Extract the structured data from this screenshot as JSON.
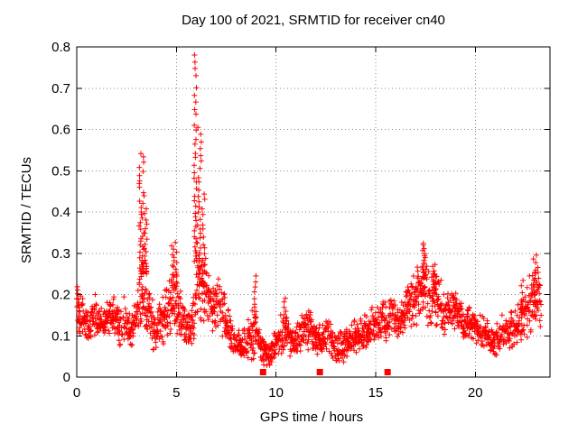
{
  "figure": {
    "background": "#ffffff"
  },
  "chart_data": {
    "type": "scatter",
    "title": "Day 100 of 2021, SRMTID for receiver cn40",
    "xlabel": "GPS time / hours",
    "ylabel": "SRMTID / TECUs",
    "xlim": [
      0,
      23.75
    ],
    "ylim": [
      0,
      0.8
    ],
    "xticks": [
      0,
      5,
      10,
      15,
      20
    ],
    "yticks": [
      0,
      0.1,
      0.2,
      0.3,
      0.4,
      0.5,
      0.6,
      0.7,
      0.8
    ],
    "grid": true,
    "legend": "none",
    "colors": {
      "marker": "#ff0000",
      "grid": "#888888",
      "axis": "#000000",
      "text": "#000000",
      "background": "#ffffff"
    },
    "marker": {
      "shape": "plus",
      "size": 7,
      "stroke_width": 1
    },
    "series": [
      {
        "name": "srmtid",
        "render": "band-scatter",
        "epoch_step": 0.035,
        "x_start": 0.02,
        "x_end": 23.3,
        "envelope": [
          [
            0.0,
            0.1,
            0.24
          ],
          [
            0.3,
            0.09,
            0.2
          ],
          [
            0.6,
            0.07,
            0.16
          ],
          [
            0.9,
            0.1,
            0.21
          ],
          [
            1.2,
            0.08,
            0.17
          ],
          [
            1.5,
            0.09,
            0.2
          ],
          [
            1.8,
            0.1,
            0.22
          ],
          [
            2.1,
            0.07,
            0.17
          ],
          [
            2.4,
            0.08,
            0.2
          ],
          [
            2.7,
            0.06,
            0.16
          ],
          [
            3.0,
            0.08,
            0.22
          ],
          [
            3.3,
            0.1,
            0.3
          ],
          [
            3.6,
            0.08,
            0.25
          ],
          [
            3.9,
            0.05,
            0.18
          ],
          [
            4.2,
            0.06,
            0.2
          ],
          [
            4.5,
            0.08,
            0.24
          ],
          [
            4.8,
            0.1,
            0.28
          ],
          [
            5.1,
            0.1,
            0.24
          ],
          [
            5.4,
            0.08,
            0.18
          ],
          [
            5.7,
            0.07,
            0.16
          ],
          [
            6.0,
            0.1,
            0.3
          ],
          [
            6.3,
            0.1,
            0.34
          ],
          [
            6.6,
            0.1,
            0.28
          ],
          [
            6.9,
            0.1,
            0.24
          ],
          [
            7.2,
            0.1,
            0.26
          ],
          [
            7.5,
            0.06,
            0.2
          ],
          [
            7.8,
            0.04,
            0.14
          ],
          [
            8.1,
            0.04,
            0.13
          ],
          [
            8.4,
            0.03,
            0.12
          ],
          [
            8.7,
            0.04,
            0.16
          ],
          [
            9.0,
            0.04,
            0.18
          ],
          [
            9.3,
            0.02,
            0.1
          ],
          [
            9.6,
            0.02,
            0.09
          ],
          [
            9.9,
            0.03,
            0.12
          ],
          [
            10.2,
            0.05,
            0.16
          ],
          [
            10.5,
            0.05,
            0.17
          ],
          [
            10.8,
            0.04,
            0.13
          ],
          [
            11.1,
            0.05,
            0.14
          ],
          [
            11.4,
            0.06,
            0.16
          ],
          [
            11.7,
            0.06,
            0.18
          ],
          [
            12.0,
            0.05,
            0.14
          ],
          [
            12.3,
            0.05,
            0.13
          ],
          [
            12.6,
            0.06,
            0.15
          ],
          [
            12.9,
            0.04,
            0.12
          ],
          [
            13.2,
            0.03,
            0.11
          ],
          [
            13.5,
            0.04,
            0.12
          ],
          [
            13.8,
            0.05,
            0.14
          ],
          [
            14.1,
            0.05,
            0.15
          ],
          [
            14.4,
            0.06,
            0.16
          ],
          [
            14.7,
            0.07,
            0.17
          ],
          [
            15.0,
            0.08,
            0.18
          ],
          [
            15.3,
            0.08,
            0.19
          ],
          [
            15.6,
            0.08,
            0.2
          ],
          [
            15.9,
            0.09,
            0.2
          ],
          [
            16.2,
            0.08,
            0.19
          ],
          [
            16.5,
            0.09,
            0.22
          ],
          [
            16.8,
            0.1,
            0.25
          ],
          [
            17.1,
            0.11,
            0.28
          ],
          [
            17.4,
            0.12,
            0.3
          ],
          [
            17.7,
            0.11,
            0.27
          ],
          [
            18.0,
            0.11,
            0.27
          ],
          [
            18.3,
            0.1,
            0.24
          ],
          [
            18.6,
            0.1,
            0.22
          ],
          [
            18.9,
            0.1,
            0.22
          ],
          [
            19.2,
            0.09,
            0.2
          ],
          [
            19.5,
            0.08,
            0.18
          ],
          [
            19.8,
            0.08,
            0.17
          ],
          [
            20.1,
            0.07,
            0.16
          ],
          [
            20.4,
            0.06,
            0.15
          ],
          [
            20.7,
            0.06,
            0.14
          ],
          [
            21.0,
            0.05,
            0.14
          ],
          [
            21.3,
            0.05,
            0.15
          ],
          [
            21.6,
            0.06,
            0.16
          ],
          [
            21.9,
            0.06,
            0.17
          ],
          [
            22.2,
            0.07,
            0.19
          ],
          [
            22.5,
            0.08,
            0.22
          ],
          [
            22.8,
            0.1,
            0.26
          ],
          [
            23.1,
            0.11,
            0.29
          ],
          [
            23.3,
            0.1,
            0.28
          ]
        ],
        "spikes": [
          [
            3.25,
            0.25,
            0.25,
            0.55,
            40
          ],
          [
            3.45,
            0.15,
            0.25,
            0.42,
            18
          ],
          [
            4.9,
            0.3,
            0.22,
            0.33,
            22
          ],
          [
            5.95,
            0.12,
            0.28,
            0.8,
            38
          ],
          [
            6.15,
            0.2,
            0.25,
            0.62,
            30
          ],
          [
            6.35,
            0.15,
            0.22,
            0.46,
            18
          ],
          [
            8.95,
            0.1,
            0.13,
            0.26,
            12
          ],
          [
            10.45,
            0.12,
            0.12,
            0.2,
            10
          ],
          [
            17.4,
            0.25,
            0.24,
            0.33,
            20
          ],
          [
            17.95,
            0.25,
            0.2,
            0.28,
            14
          ],
          [
            22.35,
            0.1,
            0.15,
            0.25,
            8
          ],
          [
            23.0,
            0.3,
            0.2,
            0.3,
            16
          ]
        ]
      },
      {
        "name": "baseline-markers",
        "render": "squares",
        "size": 7,
        "points": [
          [
            9.35,
            0.012
          ],
          [
            12.2,
            0.012
          ],
          [
            15.6,
            0.012
          ]
        ]
      }
    ]
  }
}
